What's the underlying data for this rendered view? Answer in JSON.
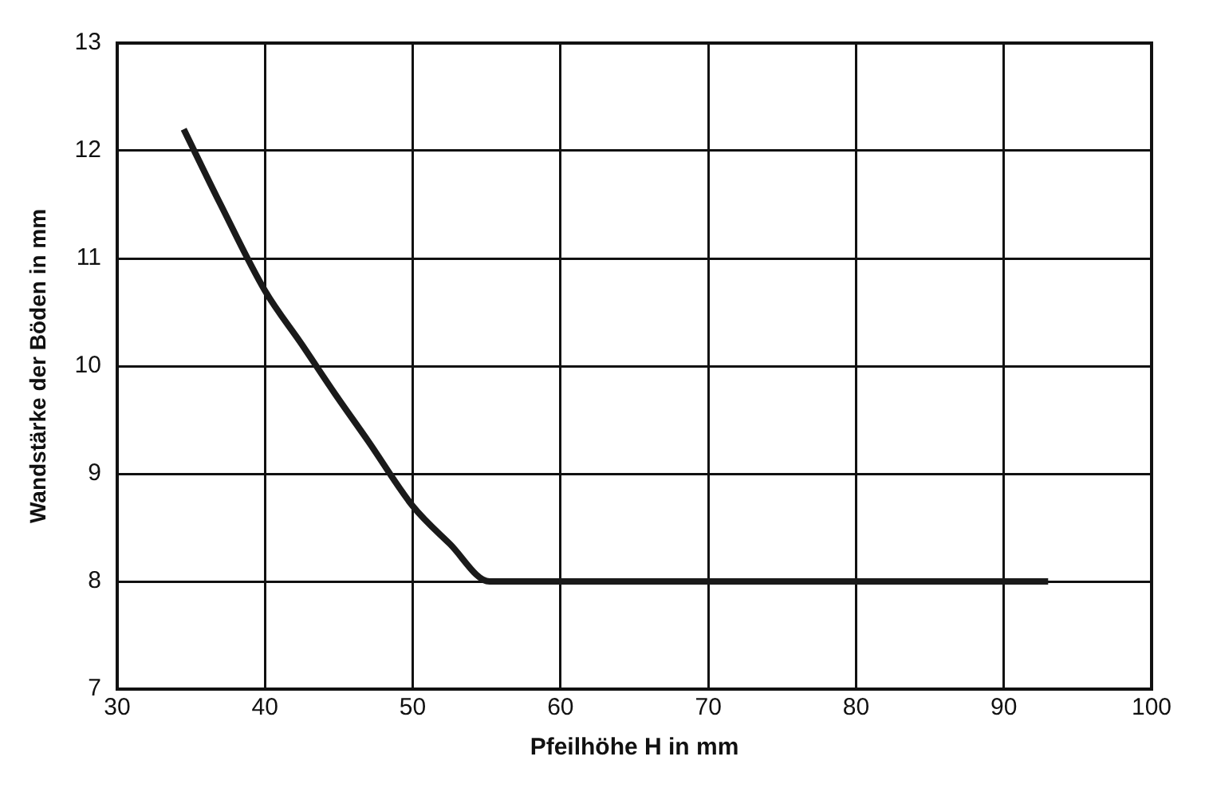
{
  "chart_data": {
    "type": "line",
    "xlabel": "Pfeilhöhe H in mm",
    "ylabel": "Wandstärke der Böden in mm",
    "x": [
      34.5,
      37,
      40,
      42.5,
      44.7,
      47,
      50,
      52.5,
      55.2,
      93
    ],
    "series": [
      {
        "color": "#1a1a1a",
        "values": [
          12.2,
          11.5,
          10.7,
          10.2,
          9.75,
          9.3,
          8.7,
          8.35,
          8.0,
          8.0
        ]
      }
    ],
    "xlim": [
      30,
      100
    ],
    "xticks": [
      30,
      40,
      50,
      60,
      70,
      80,
      90,
      100
    ],
    "ylim": [
      7,
      13
    ],
    "yticks": [
      7,
      8,
      9,
      10,
      11,
      12,
      13
    ],
    "grid": true,
    "legend": false,
    "marker": "none",
    "line_style": "solid"
  }
}
